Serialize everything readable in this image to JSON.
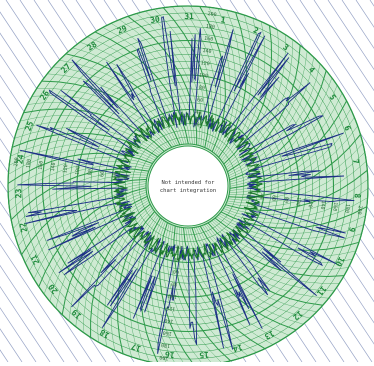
{
  "chart_data": {
    "type": "circular-recorder-chart",
    "center_note_lines": [
      "Not intended for",
      "chart integration"
    ],
    "day_labels": [
      "1",
      "2",
      "3",
      "4",
      "5",
      "6",
      "7",
      "8",
      "9",
      "10",
      "11",
      "12",
      "13",
      "14",
      "15",
      "16",
      "17",
      "18",
      "19",
      "20",
      "21",
      "22",
      "23",
      "24",
      "25",
      "26",
      "27",
      "28",
      "29",
      "30",
      "31"
    ],
    "scale_labels": [
      "200",
      "180",
      "160",
      "140",
      "120",
      "100",
      "80",
      "60",
      "40",
      "20"
    ],
    "colors": {
      "grid": "#2e9a4a",
      "grid_fill": "#cfead3",
      "day_label": "#1f8a3c",
      "series_blue": "#1c2f86",
      "series_green": "#1a7a2a",
      "hatch": "#9aa6c8"
    },
    "series": [
      {
        "color_key": "series_blue",
        "style": "spiky trace, large daily swings"
      },
      {
        "color_key": "series_green",
        "style": "low-amplitude trace near inner scale"
      }
    ]
  }
}
